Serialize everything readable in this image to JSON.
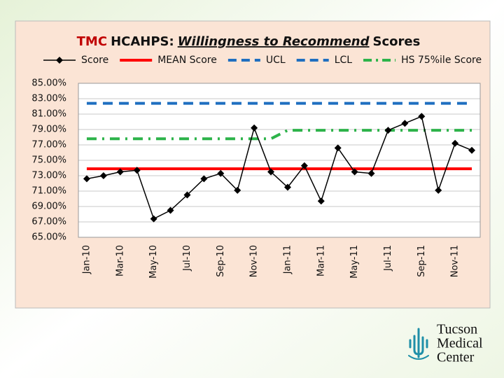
{
  "chart_data": {
    "type": "line",
    "title": [
      "TMC",
      "HCAHPS:",
      "Willingness to Recommend",
      "Scores"
    ],
    "categories": [
      "Jan-10",
      null,
      "Mar-10",
      null,
      "May-10",
      null,
      "Jul-10",
      null,
      "Sep-10",
      null,
      "Nov-10",
      null,
      "Jan-11",
      null,
      "Mar-11",
      null,
      "May-11",
      null,
      "Jul-11",
      null,
      "Sep-11",
      null,
      "Nov-11",
      null
    ],
    "series": [
      {
        "name": "Score",
        "color": "#000000",
        "style": "line-marker",
        "values": [
          72.6,
          73.0,
          73.5,
          73.7,
          67.4,
          68.5,
          70.5,
          72.6,
          73.3,
          71.1,
          79.2,
          73.5,
          71.5,
          74.3,
          69.7,
          76.6,
          73.5,
          73.3,
          78.9,
          79.8,
          80.7,
          71.1,
          77.2,
          76.3
        ]
      },
      {
        "name": "MEAN Score",
        "color": "#ff0000",
        "style": "solid",
        "values": [
          73.9,
          73.9,
          73.9,
          73.9,
          73.9,
          73.9,
          73.9,
          73.9,
          73.9,
          73.9,
          73.9,
          73.9,
          73.9,
          73.9,
          73.9,
          73.9,
          73.9,
          73.9,
          73.9,
          73.9,
          73.9,
          73.9,
          73.9,
          73.9
        ]
      },
      {
        "name": "UCL",
        "color": "#1f6fc0",
        "style": "dashed",
        "values": [
          82.4,
          82.4,
          82.4,
          82.4,
          82.4,
          82.4,
          82.4,
          82.4,
          82.4,
          82.4,
          82.4,
          82.4,
          82.4,
          82.4,
          82.4,
          82.4,
          82.4,
          82.4,
          82.4,
          82.4,
          82.4,
          82.4,
          82.4,
          82.4
        ]
      },
      {
        "name": "LCL",
        "color": "#1f6fc0",
        "style": "dashed",
        "values": [
          null,
          null,
          null,
          null,
          null,
          null,
          null,
          null,
          null,
          null,
          null,
          null,
          null,
          null,
          null,
          null,
          null,
          null,
          null,
          null,
          null,
          null,
          null,
          null
        ]
      },
      {
        "name": "HS 75%ile Score",
        "color": "#2db34a",
        "style": "dashdot",
        "values": [
          77.8,
          77.8,
          77.8,
          77.8,
          77.8,
          77.8,
          77.8,
          77.8,
          77.8,
          77.8,
          77.8,
          77.8,
          78.9,
          78.9,
          78.9,
          78.9,
          78.9,
          78.9,
          78.9,
          78.9,
          78.9,
          78.9,
          78.9,
          78.9
        ]
      }
    ],
    "ylim": [
      65,
      85
    ],
    "yticks": [
      {
        "value": 65,
        "label": "65.00%"
      },
      {
        "value": 67,
        "label": "67.00%"
      },
      {
        "value": 69,
        "label": "69.00%"
      },
      {
        "value": 71,
        "label": "71.00%"
      },
      {
        "value": 73,
        "label": "73.00%"
      },
      {
        "value": 75,
        "label": "75.00%"
      },
      {
        "value": 77,
        "label": "77.00%"
      },
      {
        "value": 79,
        "label": "79.00%"
      },
      {
        "value": 81,
        "label": "81.00%"
      },
      {
        "value": 83,
        "label": "83.00%"
      },
      {
        "value": 85,
        "label": "85.00%"
      }
    ],
    "grid": true
  },
  "logo": {
    "lines": [
      "Tucson",
      "Medical",
      "Center"
    ]
  }
}
